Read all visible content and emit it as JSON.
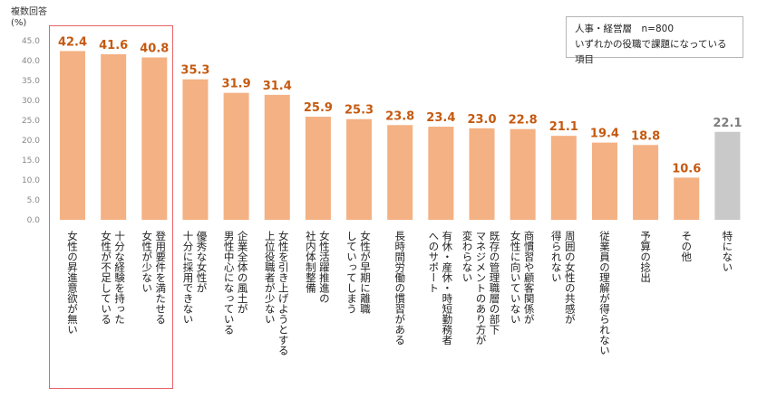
{
  "header": {
    "unit_line1": "複数回答",
    "unit_line2": "(%)"
  },
  "legend": {
    "line1": "人事・経営層　n=800",
    "line2": "いずれかの役職で課題になっている項目"
  },
  "colors": {
    "bar": "#f4b183",
    "bar_other": "#c9c9c9",
    "value_label": "#c55a11",
    "highlight_border": "#e8646b"
  },
  "chart_data": {
    "type": "bar",
    "ylim": [
      0,
      45
    ],
    "yticks": [
      "0.0",
      "5.0",
      "10.0",
      "15.0",
      "20.0",
      "25.0",
      "30.0",
      "35.0",
      "40.0",
      "45.0"
    ],
    "categories": [
      [
        "女性の昇進意欲が無い"
      ],
      [
        "十分な経験を持った",
        "女性が不足している"
      ],
      [
        "登用要件を満たせる",
        "女性が少ない"
      ],
      [
        "優秀な女性が",
        "十分に採用できない"
      ],
      [
        "企業全体の風土が",
        "男性中心になっている"
      ],
      [
        "女性を引き上げようとする",
        "上位役職者が少ない"
      ],
      [
        "女性活躍推進の",
        "社内体制整備"
      ],
      [
        "女性が早期に離職",
        "していってしまう"
      ],
      [
        "長時間労働の慣習がある"
      ],
      [
        "有休・産休・時短勤務者",
        "へのサポート"
      ],
      [
        "既存の管理職層の部下",
        "マネジメントのあり方が",
        "変わらない"
      ],
      [
        "商慣習や顧客関係が",
        "女性に向いていない"
      ],
      [
        "周囲の女性の共感が",
        "得られない"
      ],
      [
        "従業員の理解が得られない"
      ],
      [
        "予算の捻出"
      ],
      [
        "その他"
      ],
      [
        "特にない"
      ]
    ],
    "values": [
      42.4,
      41.6,
      40.8,
      35.3,
      31.9,
      31.4,
      25.9,
      25.3,
      23.8,
      23.4,
      23.0,
      22.8,
      21.1,
      19.4,
      18.8,
      10.6,
      22.1
    ],
    "value_labels": [
      "42.4",
      "41.6",
      "40.8",
      "35.3",
      "31.9",
      "31.4",
      "25.9",
      "25.3",
      "23.8",
      "23.4",
      "23.0",
      "22.8",
      "21.1",
      "19.4",
      "18.8",
      "10.6",
      "22.1"
    ],
    "gray_index": 16,
    "highlighted_range": [
      0,
      2
    ],
    "grid": false
  }
}
